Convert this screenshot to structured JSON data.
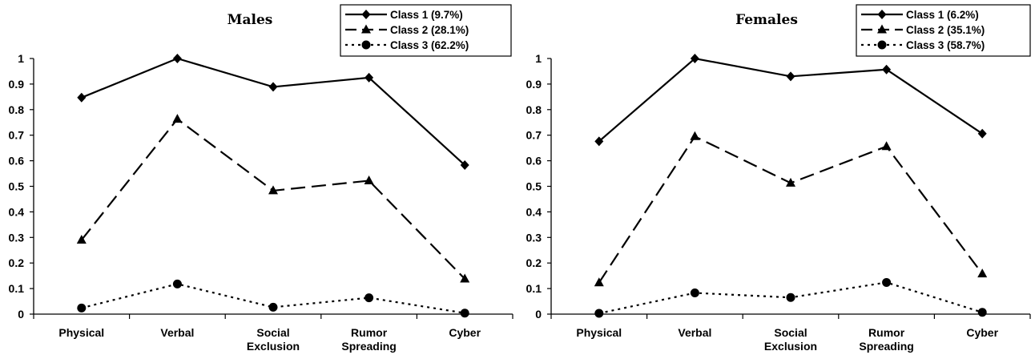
{
  "chart_data": [
    {
      "type": "line",
      "title": "Males",
      "categories": [
        [
          "Physical"
        ],
        [
          "Verbal"
        ],
        [
          "Social",
          "Exclusion"
        ],
        [
          "Rumor",
          "Spreading"
        ],
        [
          "Cyber"
        ]
      ],
      "ylim": [
        0,
        1
      ],
      "yticks": [
        "0",
        "0.1",
        "0.2",
        "0.3",
        "0.4",
        "0.5",
        "0.6",
        "0.7",
        "0.8",
        "0.9",
        "1"
      ],
      "grid": false,
      "legend_position": "top-right",
      "series": [
        {
          "name": "Class 1 (9.7%)",
          "marker": "diamond",
          "dash": "solid",
          "values": [
            0.847,
            1.0,
            0.889,
            0.925,
            0.583
          ]
        },
        {
          "name": "Class 2 (28.1%)",
          "marker": "triangle",
          "dash": "long-dash",
          "values": [
            0.29,
            0.763,
            0.483,
            0.522,
            0.138
          ]
        },
        {
          "name": "Class 3 (62.2%)",
          "marker": "circle",
          "dash": "dotted",
          "values": [
            0.024,
            0.118,
            0.027,
            0.064,
            0.004
          ]
        }
      ]
    },
    {
      "type": "line",
      "title": "Females",
      "categories": [
        [
          "Physical"
        ],
        [
          "Verbal"
        ],
        [
          "Social",
          "Exclusion"
        ],
        [
          "Rumor",
          "Spreading"
        ],
        [
          "Cyber"
        ]
      ],
      "ylim": [
        0,
        1
      ],
      "yticks": [
        "0",
        "0.1",
        "0.2",
        "0.3",
        "0.4",
        "0.5",
        "0.6",
        "0.7",
        "0.8",
        "0.9",
        "1"
      ],
      "grid": false,
      "legend_position": "top-right",
      "series": [
        {
          "name": "Class 1 (6.2%)",
          "marker": "diamond",
          "dash": "solid",
          "values": [
            0.676,
            1.0,
            0.93,
            0.957,
            0.706
          ]
        },
        {
          "name": "Class 2 (35.1%)",
          "marker": "triangle",
          "dash": "long-dash",
          "values": [
            0.123,
            0.695,
            0.513,
            0.656,
            0.158
          ]
        },
        {
          "name": "Class 3 (58.7%)",
          "marker": "circle",
          "dash": "dotted",
          "values": [
            0.003,
            0.083,
            0.065,
            0.124,
            0.007
          ]
        }
      ]
    }
  ]
}
